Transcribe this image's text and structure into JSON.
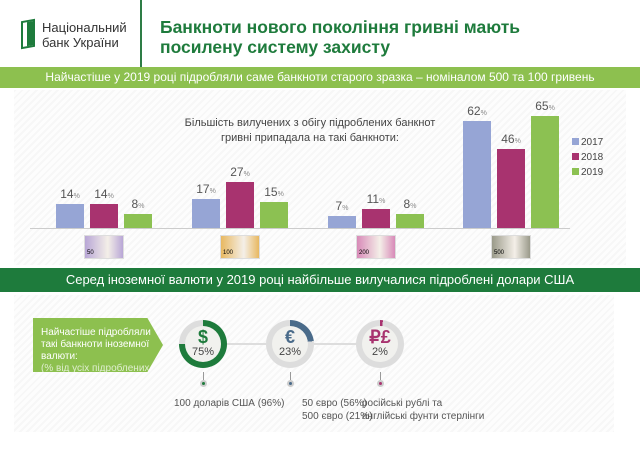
{
  "header": {
    "logo_line1": "Національний",
    "logo_line2": "банк України",
    "title": "Банкноти нового покоління гривні мають посилену систему захисту"
  },
  "band1": "Найчастіше у 2019 році підробляли саме банкноти старого зразка – номіналом 500 та 100 гривень",
  "chart_data": {
    "type": "bar",
    "title": "Більшість вилучених з обігу підроблених банкнот гривні припадала на такі банкноти:",
    "categories": [
      "50",
      "100",
      "200",
      "500"
    ],
    "unit": "%",
    "legend_position": "right",
    "series": [
      {
        "name": "2017",
        "color": "#96a5d5",
        "values": [
          14,
          17,
          7,
          62
        ]
      },
      {
        "name": "2018",
        "color": "#a8336f",
        "values": [
          14,
          27,
          11,
          46
        ]
      },
      {
        "name": "2019",
        "color": "#8cc152",
        "values": [
          8,
          15,
          8,
          65
        ]
      }
    ],
    "grid": false
  },
  "band2": "Серед іноземної валюти у 2019 році найбільше вилучалися підроблені долари США",
  "foreign": {
    "intro": "Найчастіше підробляли такі банкноти іноземної валюти:",
    "intro_sub": "(% від усіх підроблених банкнот)",
    "items": [
      {
        "symbol": "$",
        "percent": "75%",
        "value": 75,
        "color": "#1e7b3c",
        "label": "100 доларів США (96%)",
        "label2": ""
      },
      {
        "symbol": "€",
        "percent": "23%",
        "value": 23,
        "color": "#4a6b8a",
        "label": "50 євро (56%)",
        "label2": "500 євро (21%)"
      },
      {
        "symbol": "₽£",
        "percent": "2%",
        "value": 2,
        "color": "#a8336f",
        "label": "російські рублі та",
        "label2": "англійські фунти стерлінги"
      }
    ]
  }
}
